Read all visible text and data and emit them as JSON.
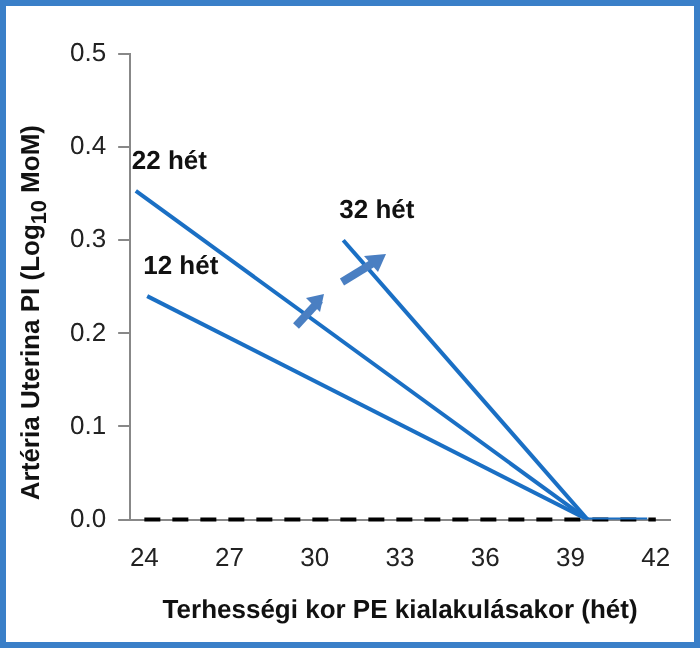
{
  "chart_data": {
    "type": "line",
    "xlabel": "Terhességi kor PE kialakulásakor (hét)",
    "ylabel": "Artéria Uterina PI (Log$_{10}$ MoM)",
    "series": [
      {
        "color": "#1a6fc4",
        "x": [
          23.7,
          39.6
        ],
        "values": [
          0.353,
          0
        ]
      },
      {
        "color": "#1a6fc4",
        "x": [
          24.1,
          39.6
        ],
        "values": [
          0.24,
          0
        ]
      },
      {
        "color": "#1a6fc4",
        "x": [
          31,
          39.6
        ],
        "values": [
          0.3,
          0
        ]
      },
      {
        "color": "#1a6fc4",
        "x": [
          39.6,
          41.7
        ],
        "values": [
          0,
          0
        ]
      }
    ],
    "annotations": [
      {
        "text": "22 hét",
        "x": 23.7,
        "y": 0.353
      },
      {
        "text": "12 hét",
        "x": 24.1,
        "y": 0.24
      },
      {
        "text": "32 hét",
        "x": 31,
        "y": 0.3
      }
    ],
    "ref_lines": [
      {
        "axis": "y",
        "value": 0,
        "color": "#000000",
        "line_style": "dashed"
      }
    ],
    "xlim": [
      23.5,
      42.5
    ],
    "xticks": [
      24,
      27,
      30,
      33,
      36,
      39,
      42
    ],
    "ylim": [
      0,
      0.5
    ],
    "yticks": [
      {
        "value": 0,
        "label": "0.0"
      },
      0.1,
      0.2,
      0.3,
      0.4,
      0.5
    ],
    "grid": false,
    "legend": false,
    "marker": "none",
    "line_style": "solid"
  }
}
